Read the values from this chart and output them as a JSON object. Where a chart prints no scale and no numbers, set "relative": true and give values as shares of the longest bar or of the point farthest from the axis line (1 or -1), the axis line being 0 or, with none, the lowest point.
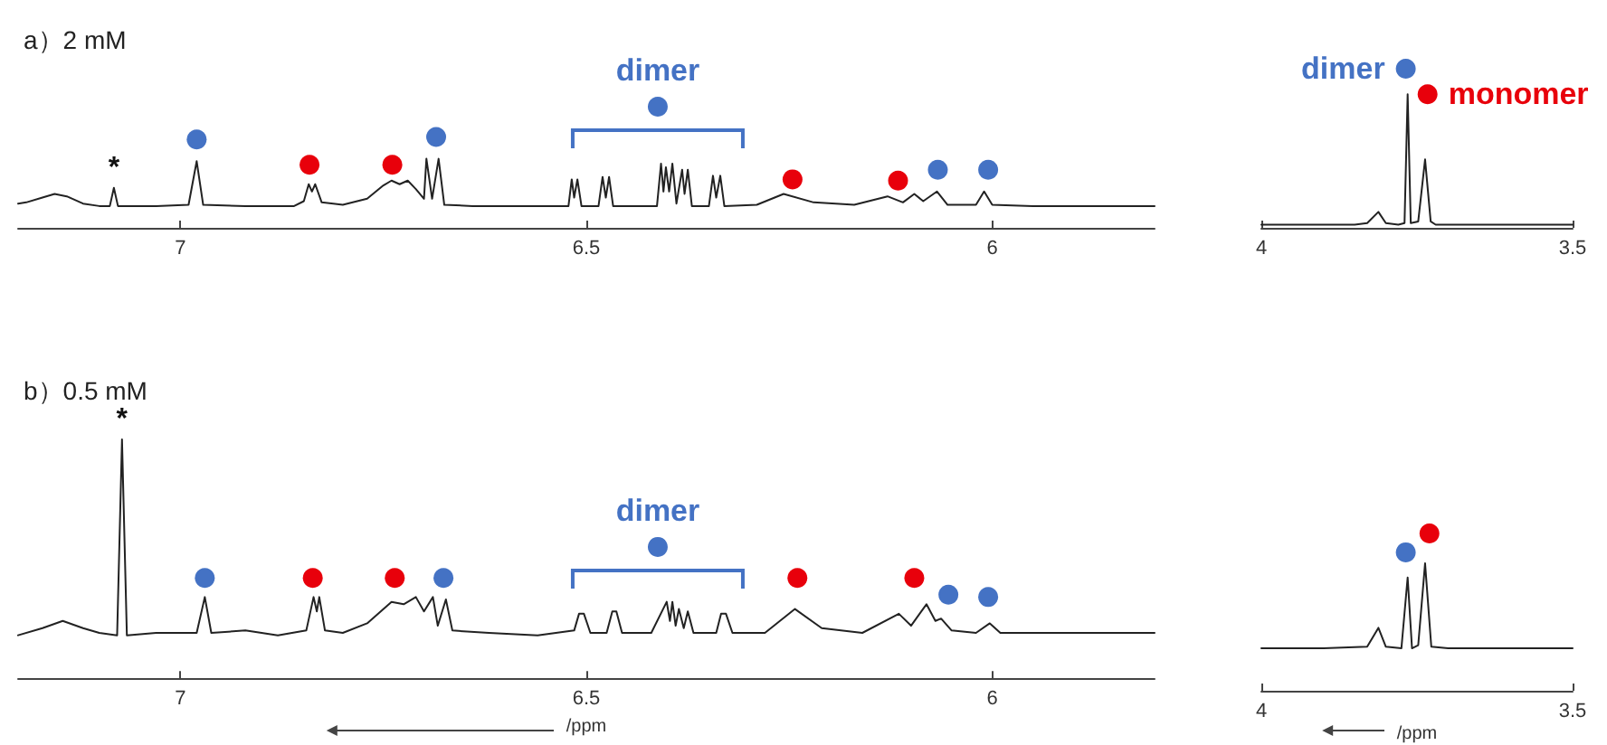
{
  "chart_data": [
    {
      "type": "line",
      "title": "a）2 mM",
      "relative": true,
      "xlim": [
        7.2,
        5.8
      ],
      "xticks": [
        7,
        6.5,
        6
      ],
      "legend": false,
      "tick_labels": "x",
      "annotations": [
        {
          "text": "*",
          "x": 7.082,
          "y": 0.33
        }
      ],
      "series": [
        {
          "color": "#222222",
          "x": [
            7.2,
            7.19,
            7.17,
            7.155,
            7.14,
            7.12,
            7.1,
            7.087,
            7.082,
            7.077,
            7.03,
            6.99,
            6.98,
            6.972,
            6.92,
            6.86,
            6.848,
            6.842,
            6.838,
            6.834,
            6.826,
            6.8,
            6.77,
            6.75,
            6.74,
            6.73,
            6.72,
            6.71,
            6.7,
            6.697,
            6.69,
            6.682,
            6.675,
            6.64,
            6.56,
            6.522,
            6.518,
            6.515,
            6.511,
            6.506,
            6.485,
            6.48,
            6.476,
            6.472,
            6.467,
            6.413,
            6.408,
            6.405,
            6.402,
            6.398,
            6.394,
            6.389,
            6.382,
            6.379,
            6.375,
            6.37,
            6.349,
            6.344,
            6.34,
            6.335,
            6.33,
            6.29,
            6.257,
            6.22,
            6.17,
            6.129,
            6.11,
            6.096,
            6.085,
            6.068,
            6.055,
            6.02,
            6.01,
            6.0,
            5.95,
            5.9,
            5.8
          ],
          "values": [
            0.2,
            0.21,
            0.25,
            0.28,
            0.26,
            0.2,
            0.18,
            0.18,
            0.33,
            0.18,
            0.18,
            0.19,
            0.55,
            0.19,
            0.18,
            0.18,
            0.22,
            0.36,
            0.3,
            0.36,
            0.21,
            0.19,
            0.24,
            0.35,
            0.39,
            0.36,
            0.39,
            0.32,
            0.24,
            0.57,
            0.24,
            0.57,
            0.19,
            0.18,
            0.18,
            0.18,
            0.4,
            0.25,
            0.4,
            0.18,
            0.18,
            0.42,
            0.25,
            0.42,
            0.18,
            0.18,
            0.53,
            0.3,
            0.5,
            0.3,
            0.53,
            0.2,
            0.48,
            0.28,
            0.48,
            0.18,
            0.18,
            0.43,
            0.25,
            0.43,
            0.18,
            0.19,
            0.28,
            0.21,
            0.19,
            0.26,
            0.21,
            0.28,
            0.22,
            0.3,
            0.19,
            0.19,
            0.3,
            0.19,
            0.18,
            0.18,
            0.18
          ]
        },
        {
          "type": "scatter",
          "marker": "circle",
          "color": "#4472c4",
          "x": [
            6.98,
            6.685,
            6.067,
            6.005
          ],
          "values": [
            0.73,
            0.75,
            0.48,
            0.48
          ]
        },
        {
          "type": "scatter",
          "marker": "circle",
          "color": "#e8000b",
          "x": [
            6.841,
            6.739,
            6.246,
            6.116
          ],
          "values": [
            0.52,
            0.52,
            0.4,
            0.39
          ]
        },
        {
          "type": "scatter",
          "marker": "circle",
          "name": "dimer",
          "color": "#4472c4",
          "x": [
            6.412
          ],
          "values": [
            1.0
          ]
        }
      ]
    },
    {
      "type": "line",
      "relative": true,
      "xlim": [
        4,
        3.5
      ],
      "xticks": [
        4,
        3.5
      ],
      "legend": false,
      "tick_labels": "x",
      "series": [
        {
          "color": "#222222",
          "x": [
            4.0,
            3.9,
            3.85,
            3.83,
            3.812,
            3.8,
            3.78,
            3.77,
            3.765,
            3.76,
            3.748,
            3.737,
            3.728,
            3.72,
            3.6,
            3.5
          ],
          "values": [
            0.02,
            0.02,
            0.02,
            0.03,
            0.1,
            0.03,
            0.02,
            0.03,
            0.84,
            0.03,
            0.04,
            0.43,
            0.04,
            0.02,
            0.02,
            0.02
          ]
        },
        {
          "type": "scatter",
          "marker": "circle",
          "name": "dimer",
          "color": "#4472c4",
          "x": [
            3.768
          ],
          "values": [
            1.0
          ]
        },
        {
          "type": "scatter",
          "marker": "circle",
          "name": "monomer",
          "color": "#e8000b",
          "x": [
            3.733
          ],
          "values": [
            0.84
          ]
        }
      ]
    },
    {
      "type": "line",
      "title": "b）0.5 mM",
      "xlabel": "/ppm",
      "relative": true,
      "xlim": [
        7.2,
        5.8
      ],
      "xticks": [
        7,
        6.5,
        6
      ],
      "legend": false,
      "tick_labels": "x",
      "annotations": [
        {
          "text": "*",
          "x": 7.072,
          "y": 1.0
        }
      ],
      "series": [
        {
          "color": "#222222",
          "x": [
            7.2,
            7.17,
            7.145,
            7.12,
            7.1,
            7.078,
            7.072,
            7.066,
            7.03,
            6.98,
            6.97,
            6.962,
            6.92,
            6.88,
            6.845,
            6.836,
            6.832,
            6.829,
            6.822,
            6.8,
            6.77,
            6.74,
            6.725,
            6.71,
            6.7,
            6.689,
            6.683,
            6.673,
            6.665,
            6.62,
            6.56,
            6.515,
            6.509,
            6.503,
            6.495,
            6.475,
            6.468,
            6.463,
            6.456,
            6.42,
            6.401,
            6.397,
            6.394,
            6.39,
            6.386,
            6.38,
            6.375,
            6.368,
            6.34,
            6.334,
            6.328,
            6.32,
            6.28,
            6.243,
            6.21,
            6.16,
            6.115,
            6.1,
            6.081,
            6.07,
            6.063,
            6.05,
            6.02,
            6.003,
            5.99,
            5.9,
            5.8
          ],
          "values": [
            0.18,
            0.21,
            0.24,
            0.21,
            0.19,
            0.18,
            1.0,
            0.18,
            0.19,
            0.19,
            0.34,
            0.19,
            0.2,
            0.18,
            0.2,
            0.34,
            0.28,
            0.34,
            0.2,
            0.19,
            0.23,
            0.32,
            0.31,
            0.34,
            0.28,
            0.34,
            0.22,
            0.33,
            0.2,
            0.19,
            0.18,
            0.2,
            0.27,
            0.27,
            0.19,
            0.19,
            0.28,
            0.28,
            0.19,
            0.19,
            0.32,
            0.24,
            0.32,
            0.22,
            0.29,
            0.21,
            0.28,
            0.19,
            0.19,
            0.27,
            0.27,
            0.19,
            0.19,
            0.29,
            0.21,
            0.19,
            0.27,
            0.22,
            0.31,
            0.24,
            0.25,
            0.2,
            0.19,
            0.23,
            0.19,
            0.19,
            0.19
          ]
        },
        {
          "type": "scatter",
          "marker": "circle",
          "color": "#4472c4",
          "x": [
            6.97,
            6.676,
            6.054,
            6.005
          ],
          "values": [
            0.42,
            0.42,
            0.35,
            0.34
          ]
        },
        {
          "type": "scatter",
          "marker": "circle",
          "color": "#e8000b",
          "x": [
            6.837,
            6.736,
            6.24,
            6.096
          ],
          "values": [
            0.42,
            0.42,
            0.42,
            0.42
          ]
        },
        {
          "type": "scatter",
          "marker": "circle",
          "name": "dimer",
          "color": "#4472c4",
          "x": [
            6.412
          ],
          "values": [
            0.55
          ]
        }
      ]
    },
    {
      "type": "line",
      "xlabel": "/ppm",
      "relative": true,
      "xlim": [
        4,
        3.5
      ],
      "xticks": [
        4,
        3.5
      ],
      "legend": false,
      "tick_labels": "x",
      "series": [
        {
          "color": "#222222",
          "x": [
            4.0,
            3.9,
            3.83,
            3.812,
            3.8,
            3.775,
            3.765,
            3.758,
            3.748,
            3.737,
            3.727,
            3.7,
            3.6,
            3.5
          ],
          "values": [
            0.27,
            0.27,
            0.28,
            0.4,
            0.28,
            0.27,
            0.72,
            0.27,
            0.29,
            0.81,
            0.28,
            0.27,
            0.27,
            0.27
          ]
        },
        {
          "type": "scatter",
          "marker": "circle",
          "color": "#4472c4",
          "x": [
            3.768
          ],
          "values": [
            0.88
          ]
        },
        {
          "type": "scatter",
          "marker": "circle",
          "color": "#e8000b",
          "x": [
            3.73
          ],
          "values": [
            1.0
          ]
        }
      ]
    }
  ]
}
